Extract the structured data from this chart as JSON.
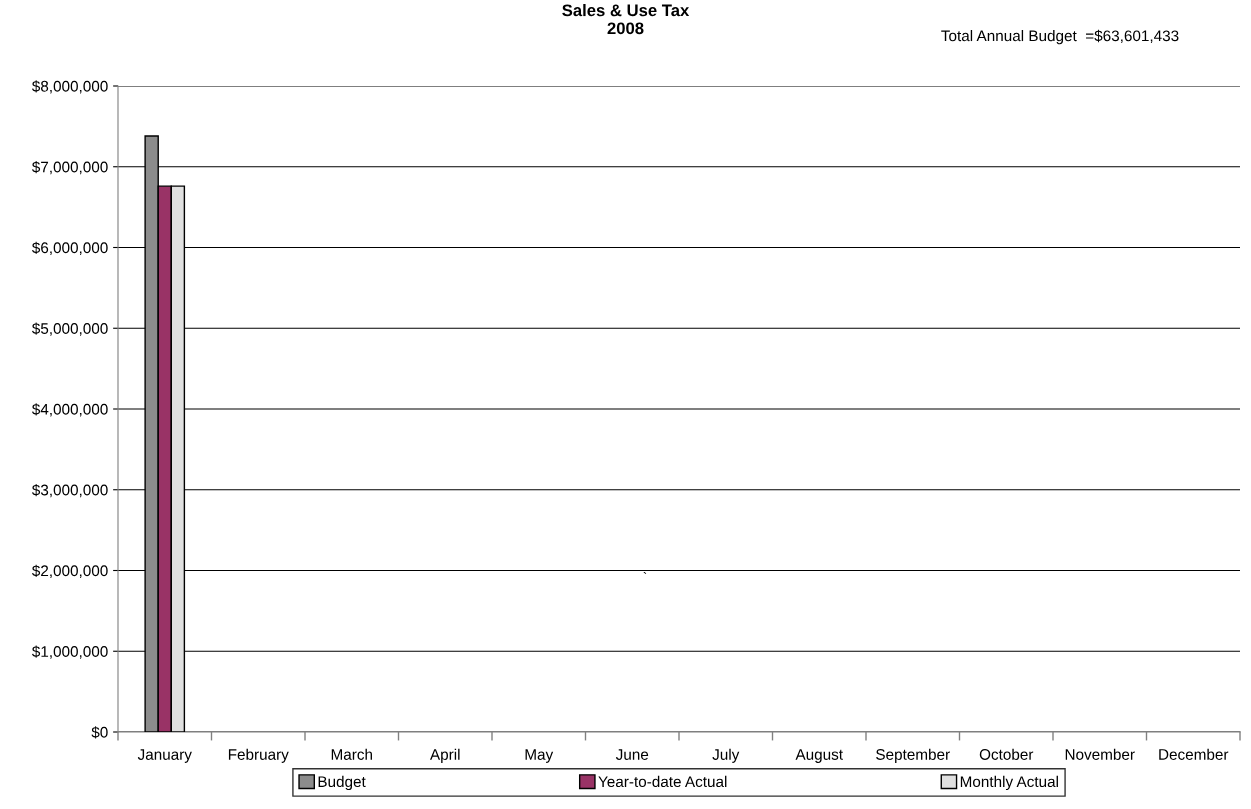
{
  "chart_data": {
    "type": "bar",
    "title": "Sales & Use Tax\n2008",
    "annotations": [
      "Total Annual Budget  =$63,601,433",
      "`"
    ],
    "categories": [
      "January",
      "February",
      "March",
      "April",
      "May",
      "June",
      "July",
      "August",
      "September",
      "October",
      "November",
      "December"
    ],
    "series": [
      {
        "name": "Budget",
        "color": "#8c8c8c",
        "values": [
          7380000,
          null,
          null,
          null,
          null,
          null,
          null,
          null,
          null,
          null,
          null,
          null
        ]
      },
      {
        "name": "Year-to-date Actual",
        "color": "#993366",
        "values": [
          6760000,
          null,
          null,
          null,
          null,
          null,
          null,
          null,
          null,
          null,
          null,
          null
        ]
      },
      {
        "name": "Monthly Actual",
        "color": "#e0e0e0",
        "values": [
          6760000,
          null,
          null,
          null,
          null,
          null,
          null,
          null,
          null,
          null,
          null,
          null
        ]
      }
    ],
    "ylim": [
      0,
      8000000
    ],
    "yticks": [
      {
        "value": 0,
        "label": "$0"
      },
      {
        "value": 1000000,
        "label": "$1,000,000"
      },
      {
        "value": 2000000,
        "label": "$2,000,000"
      },
      {
        "value": 3000000,
        "label": "$3,000,000"
      },
      {
        "value": 4000000,
        "label": "$4,000,000"
      },
      {
        "value": 5000000,
        "label": "$5,000,000"
      },
      {
        "value": 6000000,
        "label": "$6,000,000"
      },
      {
        "value": 7000000,
        "label": "$7,000,000"
      },
      {
        "value": 8000000,
        "label": "$8,000,000"
      }
    ],
    "grid": "y",
    "legend": "bottom"
  }
}
